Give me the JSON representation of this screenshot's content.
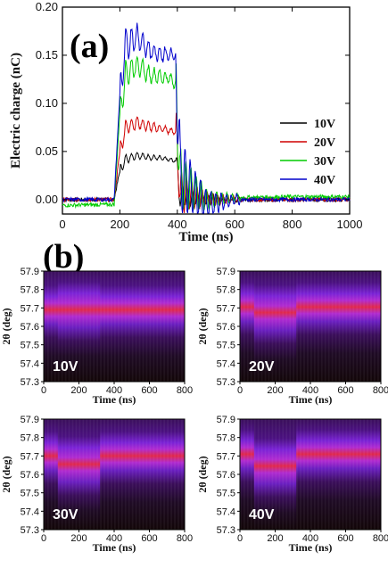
{
  "panel_a": {
    "label": "(a)"
  },
  "panel_b": {
    "label": "(b)"
  },
  "chart_data": [
    {
      "type": "line",
      "panel": "(a)",
      "xlabel": "Time (ns)",
      "ylabel": "Electric charge (nC)",
      "xlim": [
        0,
        1000
      ],
      "ylim": [
        -0.015,
        0.2
      ],
      "xticks": [
        "0",
        "200",
        "400",
        "600",
        "800",
        "1000"
      ],
      "yticks": [
        "0.00",
        "0.05",
        "0.10",
        "0.15",
        "0.20"
      ],
      "legend_position": "right",
      "series": [
        {
          "name": "10V",
          "color": "#000000",
          "baseline": 0.0,
          "level": 0.042,
          "x": [
            0,
            180,
            200,
            220,
            260,
            300,
            340,
            380,
            395,
            410,
            500,
            600,
            800,
            1000
          ],
          "y": [
            0.0,
            0.0,
            0.03,
            0.042,
            0.046,
            0.044,
            0.043,
            0.041,
            0.04,
            0.003,
            0.0,
            0.0,
            0.0,
            0.0
          ]
        },
        {
          "name": "20V",
          "color": "#d00000",
          "baseline": 0.0,
          "level": 0.073,
          "x": [
            0,
            180,
            200,
            220,
            260,
            300,
            340,
            380,
            395,
            410,
            500,
            600,
            800,
            1000
          ],
          "y": [
            0.0,
            0.0,
            0.05,
            0.075,
            0.08,
            0.076,
            0.074,
            0.071,
            0.07,
            0.008,
            0.0,
            0.0,
            0.0,
            0.0
          ]
        },
        {
          "name": "30V",
          "color": "#00cc00",
          "baseline": -0.005,
          "level": 0.125,
          "x": [
            0,
            180,
            200,
            220,
            260,
            300,
            340,
            380,
            395,
            410,
            500,
            600,
            800,
            1000
          ],
          "y": [
            -0.006,
            -0.005,
            0.09,
            0.13,
            0.14,
            0.13,
            0.128,
            0.125,
            0.12,
            0.02,
            0.0,
            0.002,
            0.003,
            0.003
          ]
        },
        {
          "name": "40V",
          "color": "#0000cc",
          "baseline": -0.002,
          "level": 0.152,
          "x": [
            0,
            180,
            200,
            220,
            260,
            300,
            340,
            380,
            395,
            410,
            500,
            600,
            800,
            1000
          ],
          "y": [
            0.0,
            0.0,
            0.11,
            0.16,
            0.17,
            0.155,
            0.152,
            0.15,
            0.148,
            0.025,
            -0.005,
            0.0,
            0.0,
            0.0
          ]
        }
      ]
    },
    {
      "type": "heatmap",
      "panel": "(b)",
      "xlabel": "Time (ns)",
      "ylabel": "2θ (deg)",
      "xlim": [
        0,
        800
      ],
      "ylim": [
        57.3,
        57.9
      ],
      "xticks": [
        "0",
        "200",
        "400",
        "600",
        "800"
      ],
      "yticks": [
        "57.3",
        "57.4",
        "57.5",
        "57.6",
        "57.7",
        "57.8",
        "57.9"
      ],
      "maps": [
        {
          "label": "10V",
          "peak_before": 57.69,
          "peak_during": 57.69,
          "shift_start": 80,
          "shift_end": 320
        },
        {
          "label": "20V",
          "peak_before": 57.705,
          "peak_during": 57.675,
          "shift_start": 80,
          "shift_end": 320
        },
        {
          "label": "30V",
          "peak_before": 57.7,
          "peak_during": 57.655,
          "shift_start": 80,
          "shift_end": 320
        },
        {
          "label": "40V",
          "peak_before": 57.71,
          "peak_during": 57.645,
          "shift_start": 80,
          "shift_end": 320
        }
      ]
    }
  ]
}
